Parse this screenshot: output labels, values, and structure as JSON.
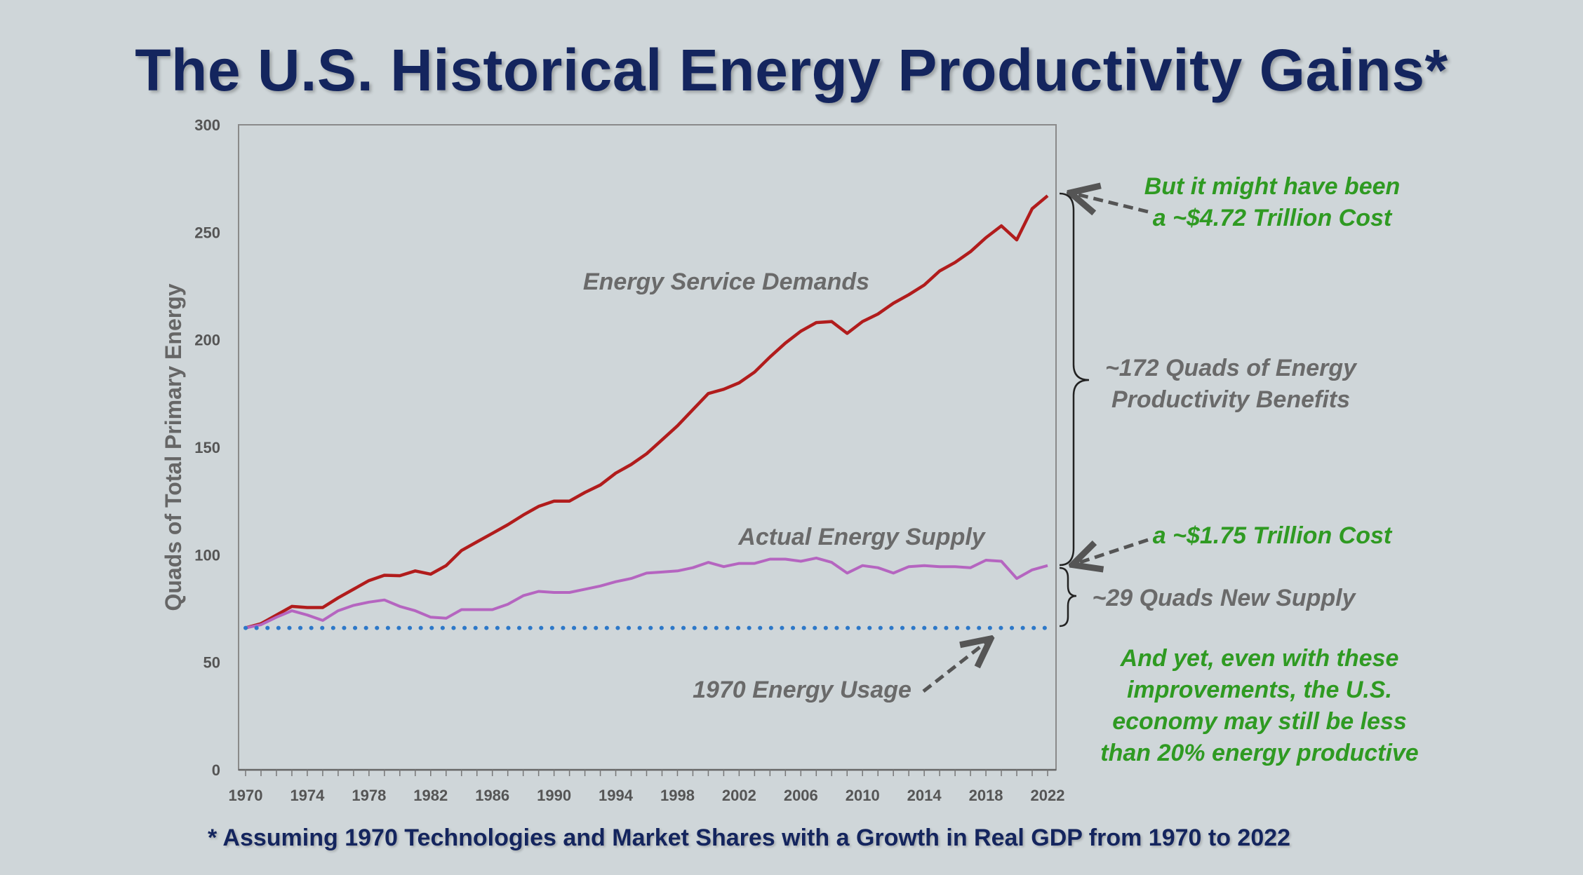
{
  "title": "The U.S. Historical Energy Productivity Gains*",
  "footnote": "* Assuming 1970 Technologies and Market Shares with a Growth in Real GDP from 1970 to 2022",
  "colors": {
    "background": "#cfd6d9",
    "title": "#14255e",
    "demand": "#b11c1c",
    "supply": "#b565c0",
    "baseline": "#2d78c8",
    "green_text": "#2f9a22",
    "gray_text": "#6a6a6a"
  },
  "chart_data": {
    "type": "line",
    "ylabel": "Quads of Total Primary Energy",
    "xlabel": "",
    "ylim": [
      0,
      300
    ],
    "xlim": [
      1970,
      2022
    ],
    "yticks": [
      0,
      50,
      100,
      150,
      200,
      250,
      300
    ],
    "xticks": [
      1970,
      1974,
      1978,
      1982,
      1986,
      1990,
      1994,
      1998,
      2002,
      2006,
      2010,
      2014,
      2018,
      2022
    ],
    "grid": false,
    "x": [
      1970,
      1971,
      1972,
      1973,
      1974,
      1975,
      1976,
      1977,
      1978,
      1979,
      1980,
      1981,
      1982,
      1983,
      1984,
      1985,
      1986,
      1987,
      1988,
      1989,
      1990,
      1991,
      1992,
      1993,
      1994,
      1995,
      1996,
      1997,
      1998,
      1999,
      2000,
      2001,
      2002,
      2003,
      2004,
      2005,
      2006,
      2007,
      2008,
      2009,
      2010,
      2011,
      2012,
      2013,
      2014,
      2015,
      2016,
      2017,
      2018,
      2019,
      2020,
      2021,
      2022
    ],
    "series": [
      {
        "name": "Energy Service Demands",
        "style": "solid",
        "values": [
          66,
          68,
          72,
          76,
          75.5,
          75.5,
          80,
          84,
          88,
          90.5,
          90.3,
          92.5,
          91,
          95,
          102,
          106,
          110,
          114,
          118.5,
          122.5,
          125,
          125,
          129,
          132.5,
          138,
          142,
          147,
          153.5,
          160,
          167.5,
          175,
          177,
          180,
          185,
          192,
          198.5,
          204,
          208,
          208.5,
          203,
          208.5,
          212,
          217,
          221,
          225.5,
          232,
          236,
          241,
          247.5,
          253,
          246.5,
          261,
          267
        ]
      },
      {
        "name": "Actual Energy Supply",
        "style": "solid",
        "values": [
          66,
          67.5,
          71,
          74,
          72,
          69.5,
          74,
          76.5,
          78,
          79,
          76,
          74,
          71,
          70.5,
          74.5,
          74.5,
          74.5,
          77,
          81,
          83,
          82.5,
          82.5,
          84,
          85.5,
          87.5,
          89,
          91.5,
          92,
          92.5,
          94,
          96.5,
          94.5,
          96,
          96,
          98,
          98,
          97,
          98.5,
          96.5,
          91.5,
          95,
          94,
          91.5,
          94.5,
          95,
          94.5,
          94.5,
          94,
          97.5,
          97,
          89,
          93,
          95
        ]
      },
      {
        "name": "1970 Energy Usage",
        "style": "dotted",
        "constant": 66
      }
    ],
    "annotations": {
      "demand_label": "Energy Service Demands",
      "supply_label": "Actual Energy Supply",
      "baseline_label": "1970 Energy Usage",
      "cost_high_line1": "But it might have been",
      "cost_high_line2": "a ~$4.72 Trillion Cost",
      "benefit_line1": "~172 Quads of Energy",
      "benefit_line2": "Productivity Benefits",
      "cost_low": "a ~$1.75 Trillion Cost",
      "new_supply": "~29 Quads New Supply",
      "conclusion_line1": "And yet, even with these",
      "conclusion_line2": "improvements, the U.S.",
      "conclusion_line3": "economy may still be less",
      "conclusion_line4": "than 20% energy productive"
    }
  }
}
